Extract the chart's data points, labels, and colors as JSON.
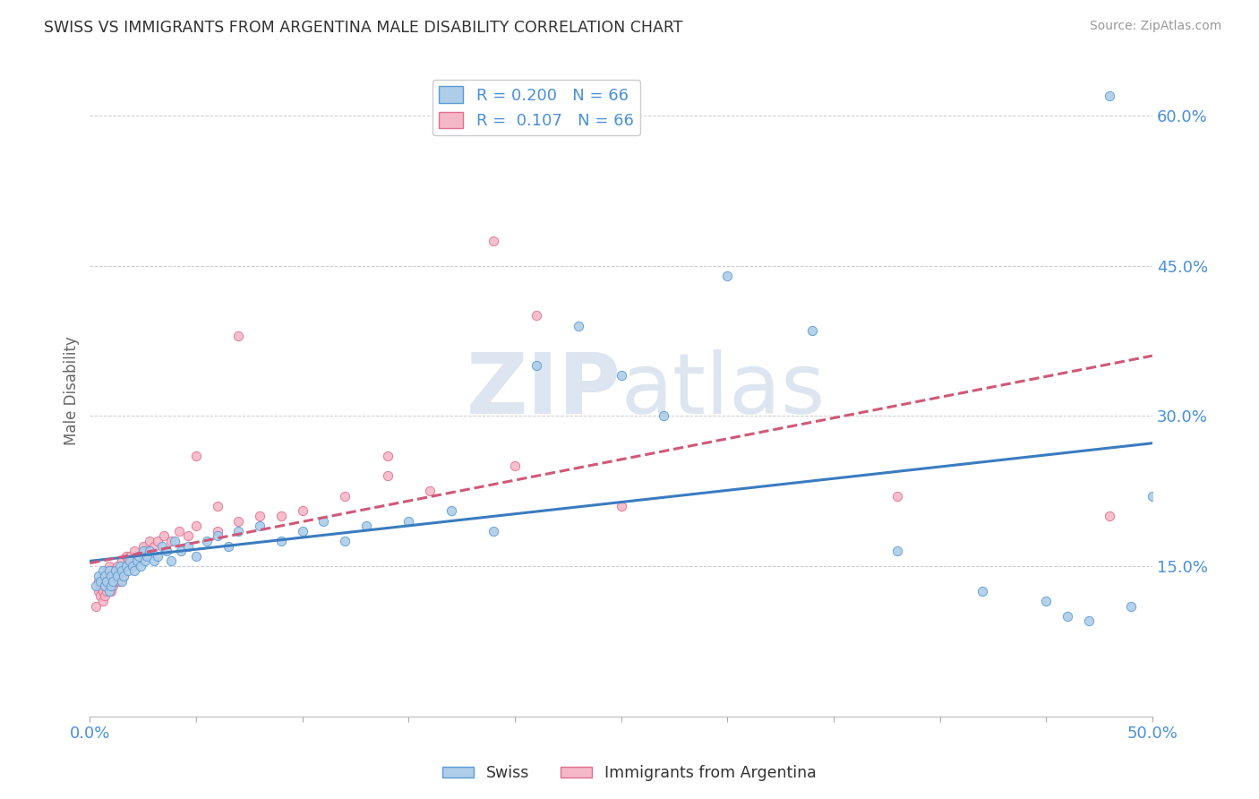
{
  "title": "SWISS VS IMMIGRANTS FROM ARGENTINA MALE DISABILITY CORRELATION CHART",
  "source": "Source: ZipAtlas.com",
  "ylabel": "Male Disability",
  "xlim": [
    0.0,
    0.5
  ],
  "ylim": [
    0.0,
    0.65
  ],
  "xticks": [
    0.0,
    0.05,
    0.1,
    0.15,
    0.2,
    0.25,
    0.3,
    0.35,
    0.4,
    0.45,
    0.5
  ],
  "yticks_right": [
    0.15,
    0.3,
    0.45,
    0.6
  ],
  "ytick_right_labels": [
    "15.0%",
    "30.0%",
    "45.0%",
    "60.0%"
  ],
  "swiss_color": "#aecde8",
  "argentina_color": "#f5b8c8",
  "swiss_edge_color": "#5b9bd5",
  "argentina_edge_color": "#e07090",
  "swiss_line_color": "#3a7cc0",
  "argentina_line_color": "#d05878",
  "background_color": "#ffffff",
  "grid_color": "#cccccc",
  "title_color": "#333333",
  "axis_label_color": "#666666",
  "tick_label_color": "#4a90d9",
  "watermark_color": "#dde5f0",
  "swiss_x": [
    0.003,
    0.004,
    0.005,
    0.006,
    0.007,
    0.007,
    0.008,
    0.009,
    0.009,
    0.01,
    0.01,
    0.011,
    0.012,
    0.013,
    0.014,
    0.015,
    0.015,
    0.016,
    0.017,
    0.018,
    0.019,
    0.02,
    0.021,
    0.022,
    0.023,
    0.024,
    0.025,
    0.026,
    0.027,
    0.028,
    0.03,
    0.032,
    0.034,
    0.036,
    0.038,
    0.04,
    0.043,
    0.046,
    0.05,
    0.055,
    0.06,
    0.065,
    0.07,
    0.08,
    0.09,
    0.1,
    0.11,
    0.12,
    0.13,
    0.15,
    0.17,
    0.19,
    0.21,
    0.23,
    0.25,
    0.27,
    0.3,
    0.34,
    0.38,
    0.42,
    0.45,
    0.46,
    0.47,
    0.48,
    0.49,
    0.5
  ],
  "swiss_y": [
    0.13,
    0.14,
    0.135,
    0.145,
    0.13,
    0.14,
    0.135,
    0.125,
    0.145,
    0.13,
    0.14,
    0.135,
    0.145,
    0.14,
    0.15,
    0.135,
    0.145,
    0.14,
    0.15,
    0.145,
    0.155,
    0.15,
    0.145,
    0.155,
    0.16,
    0.15,
    0.165,
    0.155,
    0.16,
    0.165,
    0.155,
    0.16,
    0.17,
    0.165,
    0.155,
    0.175,
    0.165,
    0.17,
    0.16,
    0.175,
    0.18,
    0.17,
    0.185,
    0.19,
    0.175,
    0.185,
    0.195,
    0.175,
    0.19,
    0.195,
    0.205,
    0.185,
    0.35,
    0.39,
    0.34,
    0.3,
    0.44,
    0.385,
    0.165,
    0.125,
    0.115,
    0.1,
    0.095,
    0.62,
    0.11,
    0.22
  ],
  "arg_x": [
    0.003,
    0.004,
    0.004,
    0.005,
    0.005,
    0.006,
    0.006,
    0.006,
    0.007,
    0.007,
    0.007,
    0.008,
    0.008,
    0.008,
    0.009,
    0.009,
    0.009,
    0.01,
    0.01,
    0.01,
    0.011,
    0.011,
    0.012,
    0.012,
    0.013,
    0.013,
    0.014,
    0.015,
    0.015,
    0.016,
    0.017,
    0.018,
    0.019,
    0.02,
    0.021,
    0.022,
    0.023,
    0.024,
    0.025,
    0.026,
    0.028,
    0.03,
    0.032,
    0.035,
    0.038,
    0.042,
    0.046,
    0.05,
    0.06,
    0.07,
    0.08,
    0.09,
    0.1,
    0.12,
    0.14,
    0.16,
    0.19,
    0.21,
    0.25,
    0.14,
    0.05,
    0.06,
    0.07,
    0.2,
    0.38,
    0.48
  ],
  "arg_y": [
    0.11,
    0.125,
    0.135,
    0.12,
    0.13,
    0.115,
    0.125,
    0.135,
    0.12,
    0.13,
    0.14,
    0.125,
    0.135,
    0.145,
    0.13,
    0.14,
    0.15,
    0.125,
    0.135,
    0.145,
    0.13,
    0.14,
    0.135,
    0.145,
    0.14,
    0.15,
    0.135,
    0.145,
    0.155,
    0.14,
    0.16,
    0.155,
    0.16,
    0.15,
    0.165,
    0.155,
    0.16,
    0.16,
    0.17,
    0.165,
    0.175,
    0.17,
    0.175,
    0.18,
    0.175,
    0.185,
    0.18,
    0.19,
    0.185,
    0.195,
    0.2,
    0.2,
    0.205,
    0.22,
    0.24,
    0.225,
    0.475,
    0.4,
    0.21,
    0.26,
    0.26,
    0.21,
    0.38,
    0.25,
    0.22,
    0.2
  ]
}
